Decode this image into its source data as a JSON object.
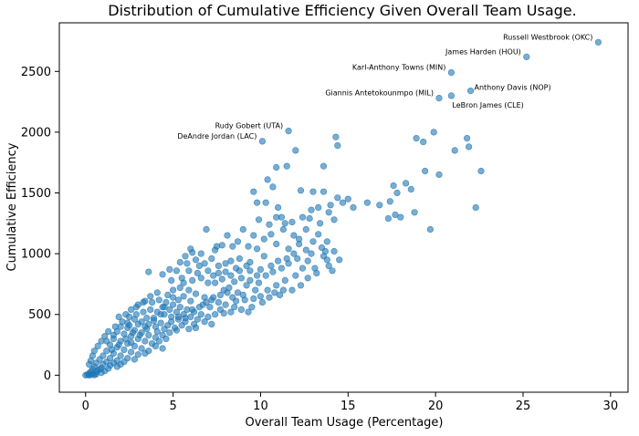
{
  "chart_data": {
    "type": "scatter",
    "title": "Distribution of Cumulative Efficiency Given Overall Team Usage.",
    "xlabel": "Overall Team Usage (Percentage)",
    "ylabel": "Cumulative Efficiency",
    "xlim": [
      -1.5,
      31
    ],
    "ylim": [
      -140,
      2900
    ],
    "xticks": [
      0,
      5,
      10,
      15,
      20,
      25,
      30
    ],
    "yticks": [
      0,
      500,
      1000,
      1500,
      2000,
      2500
    ],
    "grid": false,
    "point_color": "#1f77b4",
    "point_alpha": 0.6,
    "annotations": [
      {
        "label": "Russell Westbrook (OKC)",
        "x": 29.3,
        "y": 2740,
        "align": "right"
      },
      {
        "label": "James Harden (HOU)",
        "x": 25.2,
        "y": 2620,
        "align": "right"
      },
      {
        "label": "Karl-Anthony Towns (MIN)",
        "x": 20.9,
        "y": 2490,
        "align": "right"
      },
      {
        "label": "Anthony Davis (NOP)",
        "x": 22.0,
        "y": 2340,
        "align": "left"
      },
      {
        "label": "Giannis Antetokounmpo (MIL)",
        "x": 20.2,
        "y": 2280,
        "align": "right"
      },
      {
        "label": "LeBron James (CLE)",
        "x": 20.9,
        "y": 2300,
        "align": "left-below"
      },
      {
        "label": "Rudy Gobert (UTA)",
        "x": 11.6,
        "y": 2010,
        "align": "right"
      },
      {
        "label": "DeAndre Jordan (LAC)",
        "x": 10.1,
        "y": 1925,
        "align": "right"
      }
    ],
    "points": [
      [
        29.3,
        2740
      ],
      [
        25.2,
        2620
      ],
      [
        20.9,
        2490
      ],
      [
        22.0,
        2340
      ],
      [
        20.2,
        2280
      ],
      [
        20.9,
        2300
      ],
      [
        11.6,
        2010
      ],
      [
        10.1,
        1925
      ],
      [
        19.9,
        2000
      ],
      [
        19.3,
        1920
      ],
      [
        18.9,
        1950
      ],
      [
        21.8,
        1950
      ],
      [
        21.9,
        1880
      ],
      [
        21.1,
        1850
      ],
      [
        22.6,
        1680
      ],
      [
        19.4,
        1680
      ],
      [
        20.2,
        1650
      ],
      [
        17.6,
        1560
      ],
      [
        18.3,
        1580
      ],
      [
        18.6,
        1530
      ],
      [
        14.3,
        1960
      ],
      [
        14.4,
        1890
      ],
      [
        12.0,
        1850
      ],
      [
        13.6,
        1720
      ],
      [
        10.9,
        1710
      ],
      [
        10.4,
        1610
      ],
      [
        11.5,
        1720
      ],
      [
        12.3,
        1520
      ],
      [
        13.0,
        1510
      ],
      [
        13.6,
        1510
      ],
      [
        14.4,
        1460
      ],
      [
        15.0,
        1450
      ],
      [
        14.7,
        1420
      ],
      [
        13.3,
        1380
      ],
      [
        14.0,
        1400
      ],
      [
        15.3,
        1380
      ],
      [
        17.8,
        1500
      ],
      [
        16.1,
        1420
      ],
      [
        16.8,
        1400
      ],
      [
        17.4,
        1430
      ],
      [
        17.7,
        1320
      ],
      [
        17.3,
        1290
      ],
      [
        18.0,
        1300
      ],
      [
        18.8,
        1340
      ],
      [
        19.7,
        1200
      ],
      [
        22.3,
        1380
      ],
      [
        10.7,
        1550
      ],
      [
        9.6,
        1510
      ],
      [
        9.8,
        1420
      ],
      [
        10.3,
        1420
      ],
      [
        11.0,
        1380
      ],
      [
        11.2,
        1300
      ],
      [
        12.4,
        1300
      ],
      [
        12.8,
        1290
      ],
      [
        13.4,
        1250
      ],
      [
        14.2,
        1280
      ],
      [
        9.6,
        1150
      ],
      [
        10.2,
        1120
      ],
      [
        10.6,
        1160
      ],
      [
        11.3,
        1200
      ],
      [
        11.9,
        1150
      ],
      [
        12.6,
        1200
      ],
      [
        13.3,
        1160
      ],
      [
        13.8,
        1100
      ],
      [
        12.2,
        1080
      ],
      [
        11.9,
        1000
      ],
      [
        12.6,
        1030
      ],
      [
        13.5,
        1050
      ],
      [
        14.2,
        1020
      ],
      [
        13.6,
        980
      ],
      [
        13.8,
        950
      ],
      [
        12.7,
        940
      ],
      [
        11.5,
        960
      ],
      [
        11.0,
        940
      ],
      [
        10.2,
        980
      ],
      [
        10.6,
        900
      ],
      [
        11.2,
        880
      ],
      [
        12.4,
        880
      ],
      [
        13.1,
        880
      ],
      [
        10.0,
        870
      ],
      [
        9.4,
        930
      ],
      [
        8.8,
        960
      ],
      [
        8.4,
        1060
      ],
      [
        7.8,
        1070
      ],
      [
        8.1,
        1150
      ],
      [
        7.5,
        1060
      ],
      [
        6.9,
        1200
      ],
      [
        7.4,
        1030
      ],
      [
        6.1,
        1010
      ],
      [
        5.7,
        980
      ],
      [
        6.3,
        950
      ],
      [
        5.8,
        920
      ],
      [
        5.4,
        930
      ],
      [
        6.5,
        900
      ],
      [
        7.0,
        860
      ],
      [
        7.3,
        820
      ],
      [
        7.6,
        840
      ],
      [
        8.0,
        850
      ],
      [
        8.3,
        820
      ],
      [
        8.9,
        800
      ],
      [
        9.4,
        780
      ],
      [
        9.9,
        760
      ],
      [
        10.4,
        700
      ],
      [
        10.8,
        680
      ],
      [
        11.3,
        700
      ],
      [
        10.0,
        650
      ],
      [
        9.6,
        630
      ],
      [
        9.1,
        620
      ],
      [
        8.7,
        680
      ],
      [
        8.2,
        720
      ],
      [
        7.9,
        700
      ],
      [
        7.4,
        760
      ],
      [
        7.0,
        760
      ],
      [
        6.6,
        800
      ],
      [
        6.1,
        780
      ],
      [
        5.5,
        800
      ],
      [
        5.2,
        860
      ],
      [
        4.8,
        870
      ],
      [
        4.4,
        830
      ],
      [
        3.6,
        850
      ],
      [
        4.9,
        780
      ],
      [
        5.4,
        720
      ],
      [
        5.9,
        700
      ],
      [
        6.3,
        670
      ],
      [
        6.8,
        640
      ],
      [
        7.2,
        620
      ],
      [
        7.6,
        600
      ],
      [
        8.0,
        580
      ],
      [
        8.5,
        560
      ],
      [
        8.9,
        540
      ],
      [
        9.3,
        520
      ],
      [
        7.9,
        510
      ],
      [
        7.4,
        500
      ],
      [
        7.0,
        480
      ],
      [
        6.6,
        500
      ],
      [
        6.2,
        520
      ],
      [
        5.8,
        540
      ],
      [
        5.4,
        560
      ],
      [
        5.0,
        580
      ],
      [
        4.6,
        600
      ],
      [
        4.2,
        620
      ],
      [
        3.8,
        600
      ],
      [
        3.4,
        610
      ],
      [
        3.0,
        580
      ],
      [
        4.4,
        560
      ],
      [
        4.8,
        540
      ],
      [
        5.2,
        520
      ],
      [
        5.6,
        500
      ],
      [
        6.0,
        480
      ],
      [
        6.4,
        460
      ],
      [
        6.8,
        440
      ],
      [
        7.2,
        420
      ],
      [
        6.2,
        420
      ],
      [
        5.7,
        440
      ],
      [
        5.3,
        460
      ],
      [
        4.9,
        480
      ],
      [
        4.5,
        500
      ],
      [
        4.1,
        520
      ],
      [
        3.7,
        540
      ],
      [
        3.3,
        520
      ],
      [
        2.9,
        500
      ],
      [
        2.5,
        480
      ],
      [
        3.5,
        470
      ],
      [
        3.9,
        450
      ],
      [
        4.3,
        430
      ],
      [
        4.7,
        410
      ],
      [
        5.1,
        390
      ],
      [
        5.5,
        410
      ],
      [
        5.9,
        380
      ],
      [
        6.3,
        390
      ],
      [
        4.0,
        400
      ],
      [
        3.6,
        420
      ],
      [
        3.2,
        440
      ],
      [
        2.8,
        460
      ],
      [
        2.4,
        430
      ],
      [
        2.0,
        400
      ],
      [
        2.4,
        390
      ],
      [
        2.8,
        370
      ],
      [
        3.2,
        350
      ],
      [
        3.6,
        330
      ],
      [
        4.0,
        310
      ],
      [
        4.4,
        330
      ],
      [
        4.8,
        350
      ],
      [
        5.2,
        370
      ],
      [
        4.6,
        300
      ],
      [
        4.2,
        280
      ],
      [
        3.8,
        260
      ],
      [
        3.4,
        280
      ],
      [
        3.0,
        300
      ],
      [
        2.6,
        320
      ],
      [
        2.2,
        340
      ],
      [
        1.8,
        360
      ],
      [
        1.6,
        300
      ],
      [
        2.0,
        280
      ],
      [
        2.4,
        260
      ],
      [
        2.8,
        240
      ],
      [
        3.2,
        220
      ],
      [
        3.6,
        200
      ],
      [
        4.0,
        240
      ],
      [
        4.4,
        220
      ],
      [
        1.4,
        250
      ],
      [
        1.8,
        230
      ],
      [
        2.2,
        210
      ],
      [
        2.6,
        190
      ],
      [
        3.0,
        170
      ],
      [
        3.4,
        180
      ],
      [
        1.2,
        200
      ],
      [
        1.6,
        180
      ],
      [
        2.0,
        160
      ],
      [
        2.4,
        140
      ],
      [
        2.8,
        130
      ],
      [
        1.0,
        160
      ],
      [
        1.4,
        140
      ],
      [
        1.8,
        120
      ],
      [
        2.2,
        110
      ],
      [
        0.8,
        130
      ],
      [
        1.2,
        110
      ],
      [
        1.6,
        100
      ],
      [
        2.0,
        90
      ],
      [
        0.6,
        100
      ],
      [
        1.0,
        90
      ],
      [
        1.4,
        80
      ],
      [
        1.8,
        70
      ],
      [
        0.5,
        70
      ],
      [
        0.9,
        60
      ],
      [
        1.3,
        55
      ],
      [
        0.4,
        50
      ],
      [
        0.7,
        40
      ],
      [
        1.1,
        35
      ],
      [
        0.3,
        30
      ],
      [
        0.6,
        25
      ],
      [
        0.9,
        20
      ],
      [
        0.2,
        15
      ],
      [
        0.4,
        10
      ],
      [
        0.6,
        8
      ],
      [
        0.1,
        5
      ],
      [
        0.3,
        3
      ],
      [
        0.5,
        2
      ],
      [
        0.0,
        0
      ],
      [
        0.2,
        0
      ],
      [
        0.8,
        50
      ],
      [
        1.5,
        210
      ],
      [
        2.6,
        270
      ],
      [
        3.1,
        330
      ],
      [
        1.9,
        250
      ],
      [
        2.3,
        300
      ],
      [
        2.7,
        350
      ],
      [
        3.5,
        380
      ],
      [
        3.9,
        470
      ],
      [
        4.3,
        500
      ],
      [
        4.5,
        560
      ],
      [
        5.0,
        640
      ],
      [
        5.3,
        620
      ],
      [
        5.6,
        650
      ],
      [
        6.0,
        610
      ],
      [
        6.7,
        580
      ],
      [
        7.1,
        560
      ],
      [
        7.7,
        540
      ],
      [
        8.3,
        520
      ],
      [
        8.6,
        610
      ],
      [
        9.0,
        660
      ],
      [
        9.7,
        700
      ],
      [
        9.2,
        740
      ],
      [
        8.5,
        770
      ],
      [
        7.8,
        790
      ],
      [
        8.8,
        860
      ],
      [
        9.2,
        900
      ],
      [
        10.3,
        820
      ],
      [
        10.7,
        850
      ],
      [
        11.6,
        920
      ],
      [
        12.1,
        960
      ],
      [
        12.9,
        1000
      ],
      [
        13.7,
        1020
      ],
      [
        8.3,
        940
      ],
      [
        7.6,
        900
      ],
      [
        6.8,
        920
      ],
      [
        6.4,
        840
      ],
      [
        5.9,
        860
      ],
      [
        5.6,
        760
      ],
      [
        5.0,
        700
      ],
      [
        4.7,
        660
      ],
      [
        4.1,
        680
      ],
      [
        3.7,
        650
      ],
      [
        3.3,
        600
      ],
      [
        2.9,
        560
      ],
      [
        2.6,
        540
      ],
      [
        2.3,
        500
      ],
      [
        1.9,
        480
      ],
      [
        2.1,
        440
      ],
      [
        1.7,
        400
      ],
      [
        1.3,
        360
      ],
      [
        1.1,
        320
      ],
      [
        0.9,
        280
      ],
      [
        0.7,
        240
      ],
      [
        0.5,
        200
      ],
      [
        0.4,
        160
      ],
      [
        0.3,
        120
      ],
      [
        0.2,
        90
      ],
      [
        1.2,
        280
      ],
      [
        1.6,
        330
      ],
      [
        2.5,
        410
      ],
      [
        3.0,
        420
      ],
      [
        3.4,
        400
      ],
      [
        4.1,
        360
      ],
      [
        4.5,
        380
      ],
      [
        4.9,
        440
      ],
      [
        5.3,
        480
      ],
      [
        5.7,
        470
      ],
      [
        6.1,
        540
      ],
      [
        6.5,
        560
      ],
      [
        6.9,
        600
      ],
      [
        7.3,
        640
      ],
      [
        7.7,
        660
      ],
      [
        8.1,
        680
      ],
      [
        8.4,
        640
      ],
      [
        9.5,
        560
      ],
      [
        10.1,
        600
      ],
      [
        10.5,
        640
      ],
      [
        11.1,
        660
      ],
      [
        11.8,
        700
      ],
      [
        12.3,
        740
      ],
      [
        12.7,
        800
      ],
      [
        13.2,
        840
      ],
      [
        13.9,
        900
      ],
      [
        14.5,
        950
      ],
      [
        14.1,
        860
      ],
      [
        12.0,
        820
      ],
      [
        11.4,
        780
      ],
      [
        10.9,
        740
      ],
      [
        9.8,
        820
      ],
      [
        9.4,
        860
      ],
      [
        8.6,
        880
      ],
      [
        8.0,
        920
      ],
      [
        7.2,
        960
      ],
      [
        6.6,
        1000
      ],
      [
        6.0,
        1040
      ],
      [
        11.8,
        1260
      ],
      [
        12.9,
        1360
      ],
      [
        13.9,
        1340
      ],
      [
        10.9,
        1300
      ],
      [
        11.4,
        1250
      ],
      [
        9.0,
        1200
      ],
      [
        9.9,
        1280
      ],
      [
        10.5,
        1240
      ],
      [
        8.7,
        1100
      ],
      [
        9.3,
        1060
      ],
      [
        9.8,
        1040
      ],
      [
        10.9,
        1080
      ],
      [
        11.6,
        1040
      ],
      [
        12.2,
        1120
      ],
      [
        13.0,
        1100
      ]
    ]
  }
}
